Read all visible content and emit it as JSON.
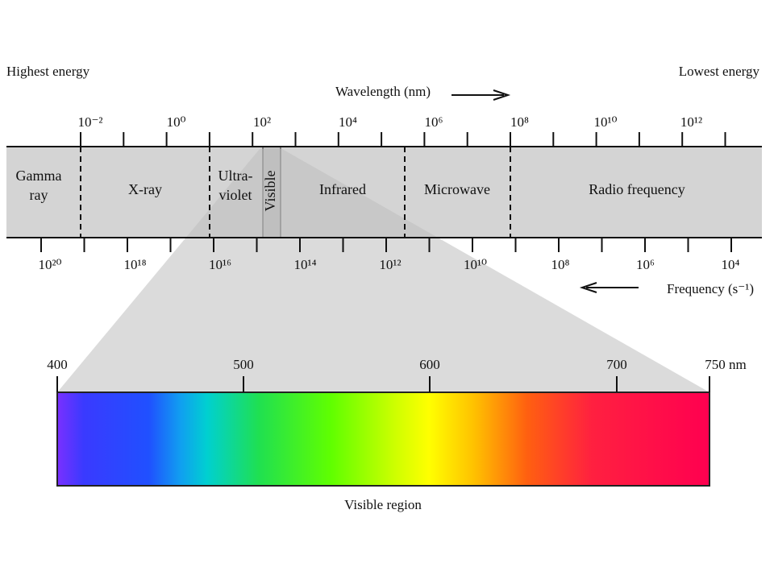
{
  "header": {
    "left": "Highest energy",
    "right": "Lowest energy"
  },
  "wavelength": {
    "label": "Wavelength (nm)",
    "ticks": [
      "10⁻²",
      "10⁰",
      "10²",
      "10⁴",
      "10⁶",
      "10⁸",
      "10¹⁰",
      "10¹²"
    ]
  },
  "frequency": {
    "label": "Frequency (s⁻¹)",
    "ticks": [
      "10²⁰",
      "10¹⁸",
      "10¹⁶",
      "10¹⁴",
      "10¹²",
      "10¹⁰",
      "10⁸",
      "10⁶",
      "10⁴"
    ]
  },
  "regions": [
    [
      "Gamma",
      "ray"
    ],
    [
      "X-ray"
    ],
    [
      "Ultra-",
      "violet"
    ],
    [
      "Visible"
    ],
    [
      "Infrared"
    ],
    [
      "Microwave"
    ],
    [
      "Radio frequency"
    ]
  ],
  "visible": {
    "ticks": [
      "400",
      "500",
      "600",
      "700",
      "750 nm"
    ],
    "caption": "Visible region"
  }
}
